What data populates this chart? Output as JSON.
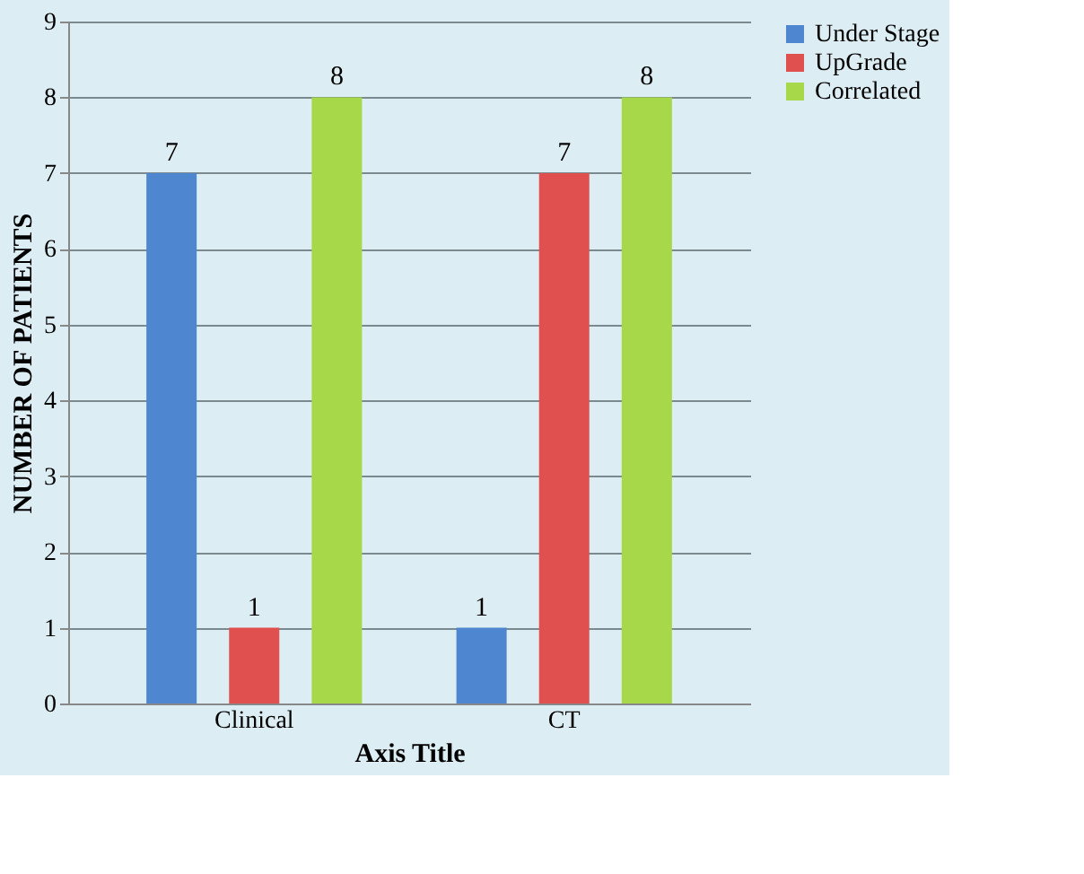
{
  "chart_data": {
    "type": "bar",
    "xlabel": "Axis Title",
    "ylabel": "NUMBER OF PATIENTS",
    "categories": [
      "Clinical",
      "CT"
    ],
    "series": [
      {
        "name": "Under Stage",
        "color": "#4f86d0",
        "values": [
          7,
          1
        ]
      },
      {
        "name": "UpGrade",
        "color": "#e0504f",
        "values": [
          1,
          7
        ]
      },
      {
        "name": "Correlated",
        "color": "#a6d84a",
        "values": [
          8,
          8
        ]
      }
    ],
    "ylim": [
      0,
      9
    ],
    "yticks": [
      0,
      1,
      2,
      3,
      4,
      5,
      6,
      7,
      8,
      9
    ],
    "grid": "y",
    "legend": "right",
    "data_labels": true
  }
}
